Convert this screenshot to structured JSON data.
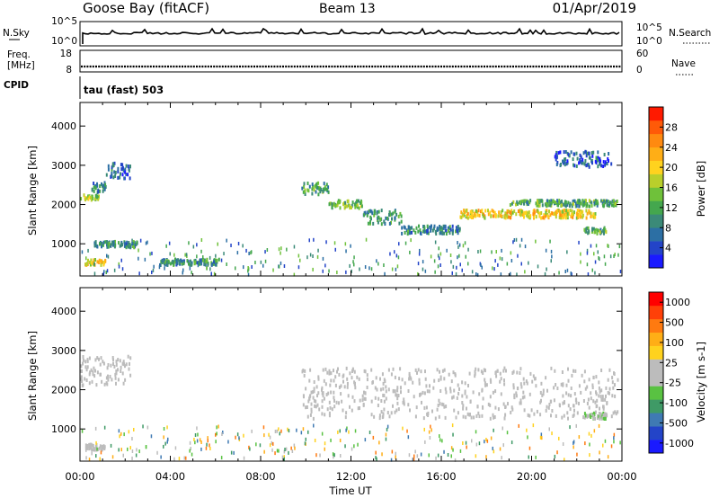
{
  "header": {
    "site": "Goose Bay (fitACF)",
    "beam": "Beam 13",
    "date": "01/Apr/2019"
  },
  "strips": {
    "nsky": {
      "label": "N.Sky",
      "ticks": [
        "10^5",
        "10^0"
      ]
    },
    "nsearch": {
      "label": "N.Search",
      "ticks": [
        "10^5",
        "10^0"
      ]
    },
    "freq": {
      "label_lines": [
        "Freq.",
        "[MHz]"
      ],
      "ticks": [
        "18",
        "8"
      ]
    },
    "nave": {
      "label": "Nave",
      "ticks": [
        "60",
        "0"
      ]
    },
    "cpid": {
      "label": "CPID",
      "text": "tau (fast) 503"
    }
  },
  "time_axis": {
    "label": "Time UT",
    "ticks": [
      "00:00",
      "04:00",
      "08:00",
      "12:00",
      "16:00",
      "20:00",
      "00:00"
    ]
  },
  "chart_data": [
    {
      "type": "heatmap",
      "title": "Power",
      "ylabel": "Slant Range [km]",
      "xlabel": "Time UT",
      "xlim": [
        0,
        24
      ],
      "ylim": [
        180,
        4600
      ],
      "yticks": [
        1000,
        2000,
        3000,
        4000
      ],
      "colorbar": {
        "label": "Power [dB]",
        "ticks": [
          "4",
          "8",
          "12",
          "16",
          "20",
          "24",
          "28"
        ],
        "colors": [
          "#1a1aff",
          "#2344c8",
          "#2c6fa4",
          "#3b8a78",
          "#44a74e",
          "#6fc13a",
          "#b9cf2b",
          "#ffd21e",
          "#ffae16",
          "#ff8a10",
          "#ff5a08",
          "#ff1a00"
        ],
        "range": [
          0,
          32
        ]
      },
      "echo_bands": [
        {
          "t": [
            0.0,
            0.8
          ],
          "r": [
            2150,
            2300
          ],
          "power": 16
        },
        {
          "t": [
            0.5,
            1.2
          ],
          "r": [
            2350,
            2600
          ],
          "power": 8
        },
        {
          "t": [
            1.1,
            2.2
          ],
          "r": [
            2700,
            3100
          ],
          "power": 6
        },
        {
          "t": [
            0.2,
            1.1
          ],
          "r": [
            500,
            650
          ],
          "power": 20
        },
        {
          "t": [
            0.6,
            2.5
          ],
          "r": [
            950,
            1100
          ],
          "power": 9
        },
        {
          "t": [
            3.5,
            6.2
          ],
          "r": [
            500,
            650
          ],
          "power": 10
        },
        {
          "t": [
            9.8,
            11.0
          ],
          "r": [
            2300,
            2600
          ],
          "power": 12
        },
        {
          "t": [
            11.0,
            12.5
          ],
          "r": [
            1950,
            2150
          ],
          "power": 14
        },
        {
          "t": [
            12.5,
            14.2
          ],
          "r": [
            1550,
            1900
          ],
          "power": 10
        },
        {
          "t": [
            14.2,
            16.8
          ],
          "r": [
            1300,
            1500
          ],
          "power": 9
        },
        {
          "t": [
            16.8,
            22.8
          ],
          "r": [
            1700,
            1900
          ],
          "power": 20
        },
        {
          "t": [
            19.0,
            23.8
          ],
          "r": [
            2000,
            2150
          ],
          "power": 12
        },
        {
          "t": [
            21.0,
            23.5
          ],
          "r": [
            3000,
            3400
          ],
          "power": 6
        },
        {
          "t": [
            22.3,
            23.3
          ],
          "r": [
            1300,
            1450
          ],
          "power": 12
        }
      ]
    },
    {
      "type": "heatmap",
      "title": "Velocity",
      "ylabel": "Slant Range [km]",
      "xlabel": "Time UT",
      "xlim": [
        0,
        24
      ],
      "ylim": [
        180,
        4600
      ],
      "yticks": [
        1000,
        2000,
        3000,
        4000
      ],
      "colorbar": {
        "label": "Velocity [m s-1]",
        "ticks": [
          "1000",
          "500",
          "100",
          "25",
          "-25",
          "-100",
          "-500",
          "-1000"
        ],
        "colors": [
          "#1a1aff",
          "#2344c8",
          "#3f7ab3",
          "#3f9a66",
          "#59c242",
          "#bcbcbc",
          "#bcbcbc",
          "#ffd21e",
          "#ffae16",
          "#ff7a10",
          "#ff4008",
          "#ff0000"
        ],
        "range": [
          -1200,
          1200
        ]
      },
      "echo_bands": [
        {
          "t": [
            0.0,
            2.2
          ],
          "r": [
            2150,
            2900
          ],
          "velocity": 0
        },
        {
          "t": [
            0.2,
            1.1
          ],
          "r": [
            500,
            650
          ],
          "velocity": 80
        },
        {
          "t": [
            9.8,
            23.8
          ],
          "r": [
            1300,
            2600
          ],
          "velocity": 0
        },
        {
          "t": [
            22.3,
            23.3
          ],
          "r": [
            1300,
            1450
          ],
          "velocity": -200
        }
      ]
    }
  ]
}
